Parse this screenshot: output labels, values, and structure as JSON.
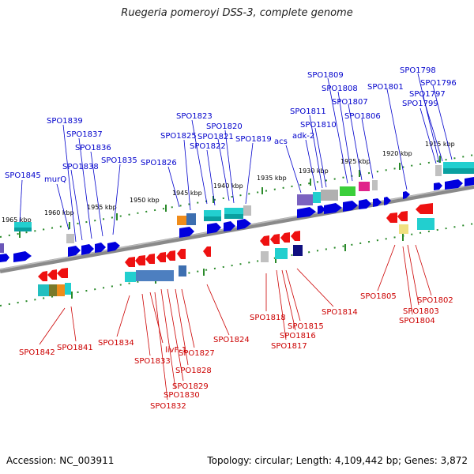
{
  "title": "Ruegeria pomeroyi DSS-3, complete genome",
  "footer": {
    "accession": "Accession: NC_003911",
    "summary": "Topology: circular; Length: 4,109,442 bp; Genes: 3,872"
  },
  "colors": {
    "forward": "#0000dd",
    "reverse": "#ee0000",
    "backbone": "#888888",
    "ticks": "#228822"
  },
  "kbp_ticks": [
    "1965 kbp",
    "1960 kbp",
    "1955 kbp",
    "1950 kbp",
    "1945 kbp",
    "1940 kbp",
    "1935 kbp",
    "1930 kbp",
    "1925 kbp",
    "1920 kbp",
    "1915 kbp"
  ],
  "forward_labels": [
    "SPO1845",
    "murQ",
    "SPO1839",
    "SPO1838",
    "SPO1837",
    "SPO1836",
    "SPO1835",
    "SPO1826",
    "SPO1825",
    "SPO1823",
    "SPO1822",
    "SPO1821",
    "SPO1820",
    "SPO1819",
    "acs",
    "adk-2",
    "SPO1811",
    "SPO1810",
    "SPO1809",
    "SPO1808",
    "SPO1807",
    "SPO1806",
    "SPO1801",
    "SPO1799",
    "SPO1798",
    "SPO1797",
    "SPO1796"
  ],
  "reverse_labels": [
    "SPO1842",
    "SPO1841",
    "SPO1834",
    "SPO1833",
    "livF-1",
    "SPO1832",
    "SPO1830",
    "SPO1829",
    "SPO1828",
    "SPO1827",
    "SPO1824",
    "SPO1818",
    "SPO1817",
    "SPO1816",
    "SPO1815",
    "SPO1814",
    "SPO1805",
    "SPO1804",
    "SPO1803",
    "SPO1802"
  ]
}
